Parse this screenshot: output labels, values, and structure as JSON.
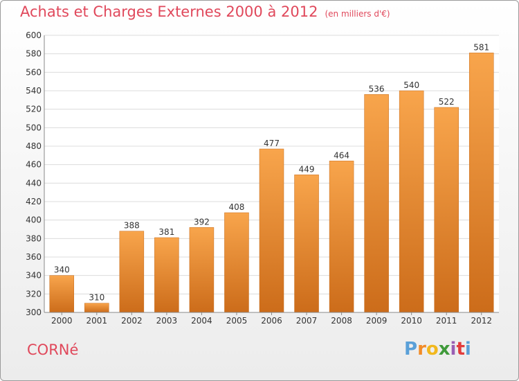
{
  "title": "Achats et Charges Externes 2000 à 2012",
  "subtitle": "(en milliers d'€)",
  "commune": "CORNé",
  "logo": "Proxiti",
  "colors": {
    "title": "#e0485b",
    "bar_light": "#f7a34a",
    "bar_dark": "#cf6e1b"
  },
  "chart_data": {
    "type": "bar",
    "categories": [
      "2000",
      "2001",
      "2002",
      "2003",
      "2004",
      "2005",
      "2006",
      "2007",
      "2008",
      "2009",
      "2010",
      "2011",
      "2012"
    ],
    "values": [
      340,
      310,
      388,
      381,
      392,
      408,
      477,
      449,
      464,
      536,
      540,
      522,
      581
    ],
    "ylim": [
      300,
      600
    ],
    "yticks": [
      300,
      320,
      340,
      360,
      380,
      400,
      420,
      440,
      460,
      480,
      500,
      520,
      540,
      560,
      580,
      600
    ],
    "grid": true
  }
}
